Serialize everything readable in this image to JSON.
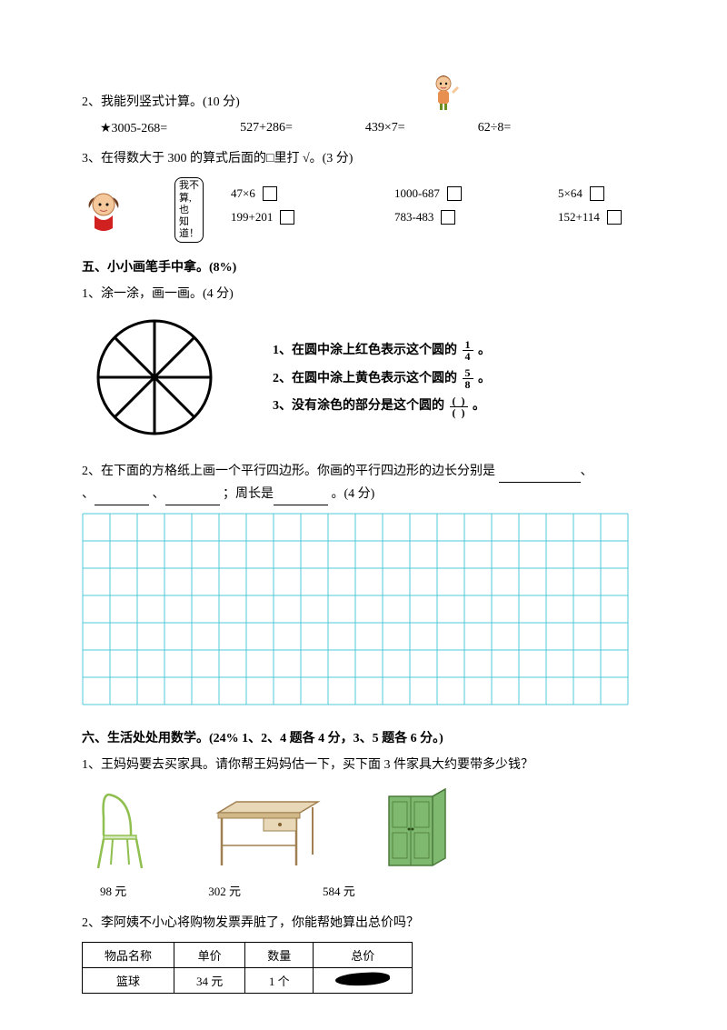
{
  "q2": {
    "title": "2、我能列竖式计算。(10 分)",
    "items": [
      "★3005-268=",
      "527+286=",
      "439×7=",
      "62÷8="
    ]
  },
  "q3": {
    "title": "3、在得数大于 300 的算式后面的□里打 √。(3 分)",
    "bubble": "我不算,也\n知道！",
    "row1": [
      "47×6",
      "1000-687",
      "5×64"
    ],
    "row2": [
      "199+201",
      "783-483",
      "152+114"
    ]
  },
  "sec5": {
    "heading": "五、小小画笔手中拿。(8%)",
    "q1": {
      "title": "1、涂一涂，画一画。(4 分)",
      "inst1a": "1、在圆中涂上红色表示这个圆的",
      "inst1_frac_num": "1",
      "inst1_frac_den": "4",
      "inst2a": "2、在圆中涂上黄色表示这个圆的",
      "inst2_frac_num": "5",
      "inst2_frac_den": "8",
      "inst3a": "3、没有涂色的部分是这个圆的",
      "period": "。"
    },
    "q2": {
      "text_a": "2、在下面的方格纸上画一个平行四边形。你画的平行四边形的边长分别是 ",
      "text_b": "、",
      "text_c": "、",
      "text_d": " ；周长是",
      "text_e": " 。(4 分)",
      "grid": {
        "cols": 20,
        "rows": 7,
        "cell": 30,
        "stroke": "#4fc9d9"
      }
    }
  },
  "sec6": {
    "heading": "六、生活处处用数学。(24%  1、2、4 题各 4 分，3、5 题各 6 分。)",
    "q1": {
      "title": "1、王妈妈要去买家具。请你帮王妈妈估一下，买下面 3 件家具大约要带多少钱？",
      "prices": [
        "98 元",
        "302 元",
        "584 元"
      ]
    },
    "q2": {
      "title": "2、李阿姨不小心将购物发票弄脏了，你能帮她算出总价吗？",
      "headers": [
        "物品名称",
        "单价",
        "数量",
        "总价"
      ],
      "row": [
        "篮球",
        "34 元",
        "1 个"
      ]
    }
  }
}
